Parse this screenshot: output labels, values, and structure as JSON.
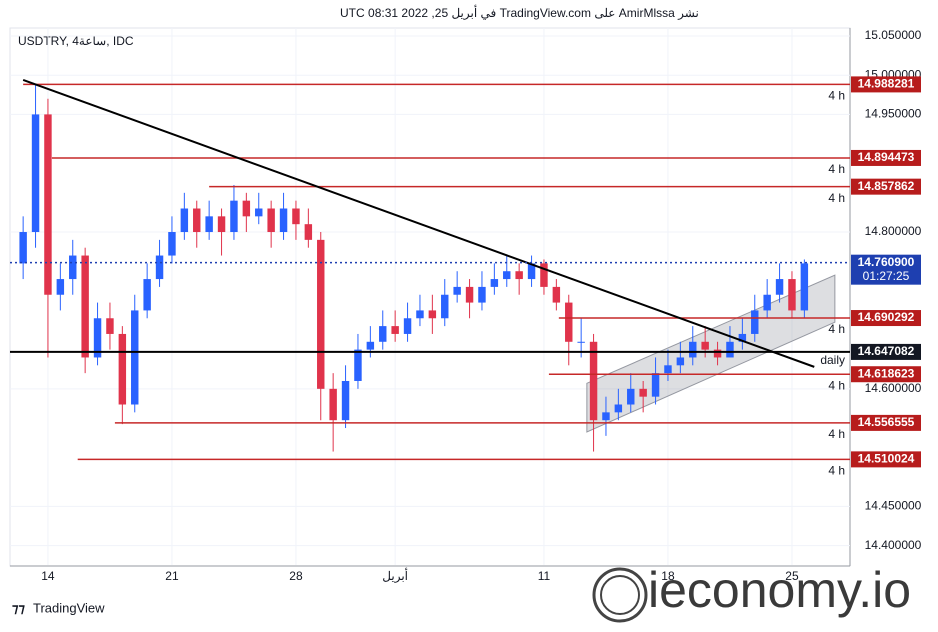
{
  "header": "نشر AmirMlssa على TradingView.com في أبريل 25, 2022 08:31 UTC",
  "footer": "TradingView",
  "watermark": "ieconomy.io",
  "chart_data": {
    "type": "candlestick",
    "title": "USDTRY, 4ساعة, IDC",
    "xlim": [
      -1.53,
      32.34
    ],
    "ylim": [
      14.3753,
      15.0768
    ],
    "xticks": [
      {
        "value": 0,
        "label": "14"
      },
      {
        "value": 5,
        "label": "21"
      },
      {
        "value": 10,
        "label": "28"
      },
      {
        "value": 14,
        "label": "أبريل"
      },
      {
        "value": 20,
        "label": "11"
      },
      {
        "value": 25,
        "label": "18"
      },
      {
        "value": 30,
        "label": "25"
      }
    ],
    "yticks": [
      {
        "value": 15.05,
        "label": "15.050000"
      },
      {
        "value": 15.0,
        "label": "15.000000"
      },
      {
        "value": 14.95,
        "label": "14.950000"
      },
      {
        "value": 14.8,
        "label": "14.800000"
      },
      {
        "value": 14.6,
        "label": "14.600000"
      },
      {
        "value": 14.45,
        "label": "14.450000"
      },
      {
        "value": 14.4,
        "label": "14.400000"
      }
    ],
    "grid": true,
    "up_color": "#2962ff",
    "down_color": "#e0334b",
    "candles": {
      "x": [
        -1,
        -0.5,
        0,
        0.5,
        1,
        1.5,
        2,
        2.5,
        3,
        3.5,
        4,
        4.5,
        5,
        5.5,
        6,
        6.5,
        7,
        7.5,
        8,
        8.5,
        9,
        9.5,
        10,
        10.5,
        11,
        11.5,
        12,
        12.5,
        13,
        13.5,
        14,
        14.5,
        15,
        15.5,
        16,
        16.5,
        17,
        17.5,
        18,
        18.5,
        19,
        19.5,
        20,
        20.5,
        21,
        21.5,
        22,
        22.5,
        23,
        23.5,
        24,
        24.5,
        25,
        25.5,
        26,
        26.5,
        27,
        27.5,
        28,
        28.5,
        29,
        29.5,
        30,
        30.5
      ],
      "open": [
        14.76,
        14.8,
        14.95,
        14.72,
        14.74,
        14.77,
        14.64,
        14.69,
        14.67,
        14.58,
        14.7,
        14.74,
        14.77,
        14.8,
        14.83,
        14.8,
        14.82,
        14.8,
        14.84,
        14.82,
        14.83,
        14.8,
        14.83,
        14.81,
        14.79,
        14.6,
        14.56,
        14.61,
        14.65,
        14.66,
        14.68,
        14.67,
        14.69,
        14.7,
        14.69,
        14.72,
        14.73,
        14.71,
        14.73,
        14.74,
        14.75,
        14.74,
        14.76,
        14.73,
        14.71,
        14.66,
        14.66,
        14.56,
        14.57,
        14.58,
        14.6,
        14.59,
        14.62,
        14.63,
        14.64,
        14.66,
        14.65,
        14.64,
        14.66,
        14.67,
        14.7,
        14.72,
        14.74,
        14.7
      ],
      "high": [
        14.82,
        14.988,
        14.97,
        14.76,
        14.79,
        14.78,
        14.71,
        14.71,
        14.68,
        14.72,
        14.76,
        14.79,
        14.82,
        14.85,
        14.84,
        14.84,
        14.83,
        14.86,
        14.85,
        14.85,
        14.84,
        14.85,
        14.84,
        14.83,
        14.8,
        14.62,
        14.63,
        14.67,
        14.68,
        14.7,
        14.7,
        14.71,
        14.72,
        14.72,
        14.74,
        14.75,
        14.74,
        14.75,
        14.76,
        14.77,
        14.76,
        14.77,
        14.765,
        14.74,
        14.72,
        14.69,
        14.67,
        14.59,
        14.6,
        14.62,
        14.61,
        14.64,
        14.65,
        14.66,
        14.68,
        14.68,
        14.66,
        14.68,
        14.69,
        14.72,
        14.74,
        14.76,
        14.75,
        14.765
      ],
      "low": [
        14.74,
        14.78,
        14.64,
        14.7,
        14.72,
        14.62,
        14.63,
        14.65,
        14.555,
        14.57,
        14.69,
        14.73,
        14.76,
        14.79,
        14.78,
        14.79,
        14.77,
        14.79,
        14.8,
        14.81,
        14.78,
        14.79,
        14.79,
        14.78,
        14.56,
        14.52,
        14.55,
        14.6,
        14.64,
        14.65,
        14.66,
        14.66,
        14.68,
        14.67,
        14.68,
        14.71,
        14.69,
        14.7,
        14.72,
        14.73,
        14.72,
        14.73,
        14.72,
        14.7,
        14.63,
        14.64,
        14.52,
        14.54,
        14.56,
        14.57,
        14.57,
        14.58,
        14.61,
        14.62,
        14.63,
        14.64,
        14.63,
        14.64,
        14.65,
        14.66,
        14.69,
        14.71,
        14.69,
        14.69
      ],
      "close": [
        14.8,
        14.95,
        14.72,
        14.74,
        14.77,
        14.64,
        14.69,
        14.67,
        14.58,
        14.7,
        14.74,
        14.77,
        14.8,
        14.83,
        14.8,
        14.82,
        14.8,
        14.84,
        14.82,
        14.83,
        14.8,
        14.83,
        14.81,
        14.79,
        14.6,
        14.56,
        14.61,
        14.65,
        14.66,
        14.68,
        14.67,
        14.69,
        14.7,
        14.69,
        14.72,
        14.73,
        14.71,
        14.73,
        14.74,
        14.75,
        14.74,
        14.76,
        14.73,
        14.71,
        14.66,
        14.66,
        14.56,
        14.57,
        14.58,
        14.6,
        14.59,
        14.62,
        14.63,
        14.64,
        14.66,
        14.65,
        14.64,
        14.66,
        14.67,
        14.7,
        14.72,
        14.74,
        14.7,
        14.76
      ]
    },
    "levels": [
      {
        "value": 14.988281,
        "from": -1.0,
        "tag": "4 h",
        "color": "#c62828"
      },
      {
        "value": 14.894473,
        "from": 0.16,
        "tag": "4 h",
        "color": "#c62828"
      },
      {
        "value": 14.857862,
        "from": 6.5,
        "tag": "4 h",
        "color": "#c62828"
      },
      {
        "value": 14.690292,
        "from": 20.6,
        "tag": "4 h",
        "color": "#c62828"
      },
      {
        "value": 14.647082,
        "from": -1.53,
        "tag": "daily",
        "color": "#000000"
      },
      {
        "value": 14.618623,
        "from": 20.2,
        "tag": "4 h",
        "color": "#c62828"
      },
      {
        "value": 14.556555,
        "from": 2.7,
        "tag": "4 h",
        "color": "#c62828"
      },
      {
        "value": 14.510024,
        "from": 1.2,
        "tag": "4 h",
        "color": "#c62828"
      }
    ],
    "current_price": {
      "value": 14.7609,
      "label": "14.760900",
      "countdown": "01:27:25",
      "color": "#1e3fb0"
    },
    "trendline": {
      "x": [
        -1.0,
        30.9
      ],
      "y": [
        14.994,
        14.628
      ]
    },
    "channel": {
      "x": [
        21.73,
        31.73
      ],
      "upper": [
        14.607,
        14.745
      ],
      "lower": [
        14.545,
        14.685
      ]
    }
  }
}
